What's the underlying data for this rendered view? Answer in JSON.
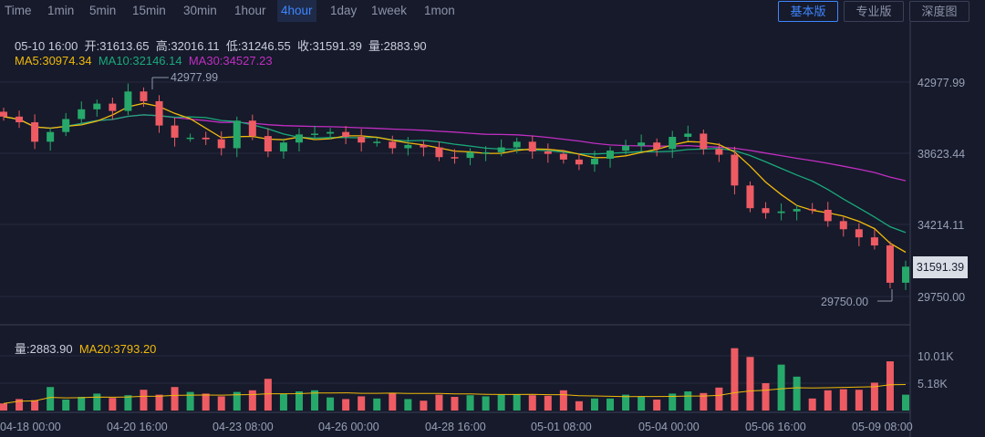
{
  "toolbar": {
    "timeframes": [
      "Time",
      "1min",
      "5min",
      "15min",
      "30min",
      "1hour",
      "4hour",
      "1day",
      "1week",
      "1mon"
    ],
    "active": "4hour",
    "views": [
      "基本版",
      "专业版",
      "深度图"
    ],
    "active_view": "基本版"
  },
  "ohlc": {
    "time": "05-10 16:00",
    "open_label": "开:",
    "open": "31613.65",
    "high_label": "高:",
    "high": "32016.11",
    "low_label": "低:",
    "low": "31246.55",
    "close_label": "收:",
    "close": "31591.39",
    "vol_label": "量:",
    "vol": "2883.90"
  },
  "ma": {
    "ma5": "MA5:30974.34",
    "ma10": "MA10:32146.14",
    "ma30": "MA30:34527.23"
  },
  "vol_info": {
    "vol": "量:2883.90",
    "ma20": "MA20:3793.20"
  },
  "price_axis": [
    "42977.99",
    "38623.44",
    "34214.11",
    "29750.00"
  ],
  "last_price": "31591.39",
  "vol_axis": [
    "10.01K",
    "5.18K"
  ],
  "x_axis": [
    "04-18 00:00",
    "04-20 16:00",
    "04-23 08:00",
    "04-26 00:00",
    "04-28 16:00",
    "05-01 08:00",
    "05-04 00:00",
    "05-06 16:00",
    "05-09 08:00"
  ],
  "annotations": {
    "high": "42977.99",
    "low": "29750.00"
  },
  "colors": {
    "up": "#26a86a",
    "down": "#ee5b63",
    "ma5": "#f0b90b",
    "ma10": "#1aa97a",
    "ma30": "#c12ec1",
    "active": "#3f86ff"
  },
  "chart_data": {
    "type": "candlestick",
    "interval": "4hour",
    "price_range": [
      28500,
      45900
    ],
    "volume_max_label": 10010,
    "candles_close_approx": [
      40850,
      40500,
      39300,
      39900,
      40700,
      41300,
      41650,
      41200,
      42400,
      41800,
      40300,
      39550,
      39550,
      39450,
      38900,
      40600,
      39650,
      38700,
      39250,
      39750,
      39800,
      39900,
      39600,
      39250,
      39300,
      38900,
      39100,
      38950,
      38350,
      38300,
      38650,
      38650,
      38950,
      39300,
      38700,
      38550,
      38200,
      37900,
      38250,
      38750,
      39050,
      39250,
      38850,
      39600,
      39800,
      38850,
      38500,
      36600,
      35200,
      34900,
      35000,
      35150,
      35100,
      34400,
      33900,
      33400,
      32900,
      30600,
      31591.39
    ],
    "volume_approx": [
      1300,
      2100,
      1900,
      4300,
      2000,
      2500,
      3100,
      2300,
      2800,
      3800,
      2900,
      4300,
      3400,
      3100,
      2600,
      3400,
      3700,
      5800,
      3000,
      3500,
      3700,
      2400,
      2100,
      2600,
      2200,
      3100,
      2100,
      1800,
      2900,
      2500,
      2800,
      2600,
      2900,
      3000,
      2800,
      2700,
      3700,
      1700,
      2200,
      2200,
      2900,
      2600,
      2000,
      3100,
      3500,
      3200,
      4200,
      11400,
      9800,
      5000,
      8400,
      6200,
      2200,
      3700,
      3900,
      3800,
      5100,
      9000,
      2900
    ]
  }
}
